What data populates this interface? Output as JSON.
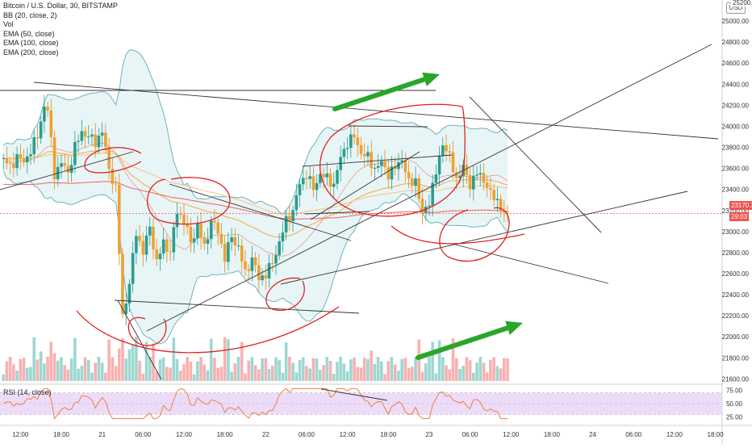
{
  "header": {
    "title": "Bitcoin / U.S. Dollar, 30, BITSTAMP",
    "indicators": [
      "BB (20, close, 2)",
      "Vol",
      "EMA (50, close)",
      "EMA (100, close)",
      "EMA (200, close)"
    ],
    "currency_badge": "USD",
    "rsi_label": "RSI (14, close)"
  },
  "price_tags": {
    "last_price": "23170.33",
    "countdown": "29:03",
    "top_partial": "25200.00"
  },
  "colors": {
    "up": "#26a69a",
    "down": "#ef5350",
    "bb_fill": "#d8eef0",
    "bb_line": "#6fb2b8",
    "ema50": "#f3b04b",
    "ema100": "#f6c58a",
    "ema200": "#f06a6a",
    "annotation_red": "#e02020",
    "annotation_green": "#2aa52a",
    "rsi_line": "#f08040",
    "rsi_band": "#ecdcf7"
  },
  "chart_data": {
    "type": "candlestick",
    "symbol": "BTCUSD",
    "timeframe": "30",
    "exchange": "BITSTAMP",
    "y_ticks": [
      21600,
      21800,
      22000,
      22200,
      22400,
      22600,
      22800,
      23000,
      23200,
      23400,
      23600,
      23800,
      24000,
      24200,
      24400,
      24600,
      24800,
      25000
    ],
    "y_tick_labels": [
      "21600.00",
      "21800.00",
      "22000.00",
      "22200.00",
      "22400.00",
      "22600.00",
      "22800.00",
      "23000.00",
      "23200.00",
      "23400.00",
      "23600.00",
      "23800.00",
      "24000.00",
      "24200.00",
      "24400.00",
      "24600.00",
      "24800.00",
      "25000.00"
    ],
    "ylim": [
      21580,
      25200
    ],
    "x_tick_labels": [
      "12:00",
      "18:00",
      "21",
      "06:00",
      "12:00",
      "18:00",
      "22",
      "06:00",
      "12:00",
      "18:00",
      "23",
      "06:00",
      "12:00",
      "18:00",
      "24",
      "06:00",
      "12:00",
      "18:00"
    ],
    "x_tick_hours": [
      12,
      18,
      24,
      30,
      36,
      42,
      48,
      54,
      60,
      66,
      72,
      78,
      84,
      90,
      96,
      102,
      108,
      114
    ],
    "xlim_hours": [
      9,
      115
    ],
    "close_path": [
      [
        9.5,
        23700
      ],
      [
        10.5,
        23600
      ],
      [
        11.5,
        23720
      ],
      [
        12.5,
        23650
      ],
      [
        13.5,
        23780
      ],
      [
        14.5,
        23900
      ],
      [
        15.5,
        24200
      ],
      [
        16,
        24150
      ],
      [
        17,
        23550
      ],
      [
        18,
        23650
      ],
      [
        19,
        23560
      ],
      [
        20,
        23800
      ],
      [
        21,
        23950
      ],
      [
        22,
        23900
      ],
      [
        23,
        23850
      ],
      [
        24,
        23950
      ],
      [
        25,
        23600
      ],
      [
        26,
        23400
      ],
      [
        27,
        22200
      ],
      [
        28,
        22500
      ],
      [
        29,
        23000
      ],
      [
        30,
        22800
      ],
      [
        31,
        23050
      ],
      [
        32,
        22700
      ],
      [
        33,
        22900
      ],
      [
        34,
        22800
      ],
      [
        35,
        23200
      ],
      [
        36,
        23100
      ],
      [
        37,
        22900
      ],
      [
        38,
        23050
      ],
      [
        39,
        22850
      ],
      [
        40,
        23100
      ],
      [
        41,
        23000
      ],
      [
        42,
        22750
      ],
      [
        43,
        22950
      ],
      [
        44,
        22850
      ],
      [
        45,
        22600
      ],
      [
        46,
        22750
      ],
      [
        47,
        22550
      ],
      [
        48,
        22600
      ],
      [
        49,
        22700
      ],
      [
        50,
        22900
      ],
      [
        51,
        23100
      ],
      [
        52,
        23200
      ],
      [
        53,
        23450
      ],
      [
        54,
        23550
      ],
      [
        55,
        23400
      ],
      [
        56,
        23550
      ],
      [
        57,
        23500
      ],
      [
        58,
        23450
      ],
      [
        59,
        23700
      ],
      [
        60,
        23850
      ],
      [
        61,
        23900
      ],
      [
        62,
        23750
      ],
      [
        63,
        23700
      ],
      [
        64,
        23600
      ],
      [
        65,
        23650
      ],
      [
        66,
        23550
      ],
      [
        67,
        23600
      ],
      [
        68,
        23700
      ],
      [
        69,
        23450
      ],
      [
        70,
        23500
      ],
      [
        71,
        23150
      ],
      [
        72,
        23300
      ],
      [
        73,
        23550
      ],
      [
        74,
        23850
      ],
      [
        75,
        23700
      ],
      [
        76,
        23500
      ],
      [
        77,
        23600
      ],
      [
        78,
        23450
      ],
      [
        79,
        23550
      ],
      [
        80,
        23500
      ],
      [
        81,
        23350
      ],
      [
        82,
        23300
      ],
      [
        83,
        23150
      ],
      [
        83.5,
        23170.33
      ]
    ],
    "rsi_levels": {
      "upper": 70,
      "middle": 50,
      "lower": 30
    },
    "rsi_tick_labels": [
      "75.00",
      "50.00",
      "25.00"
    ],
    "last_price": 23170.33
  }
}
